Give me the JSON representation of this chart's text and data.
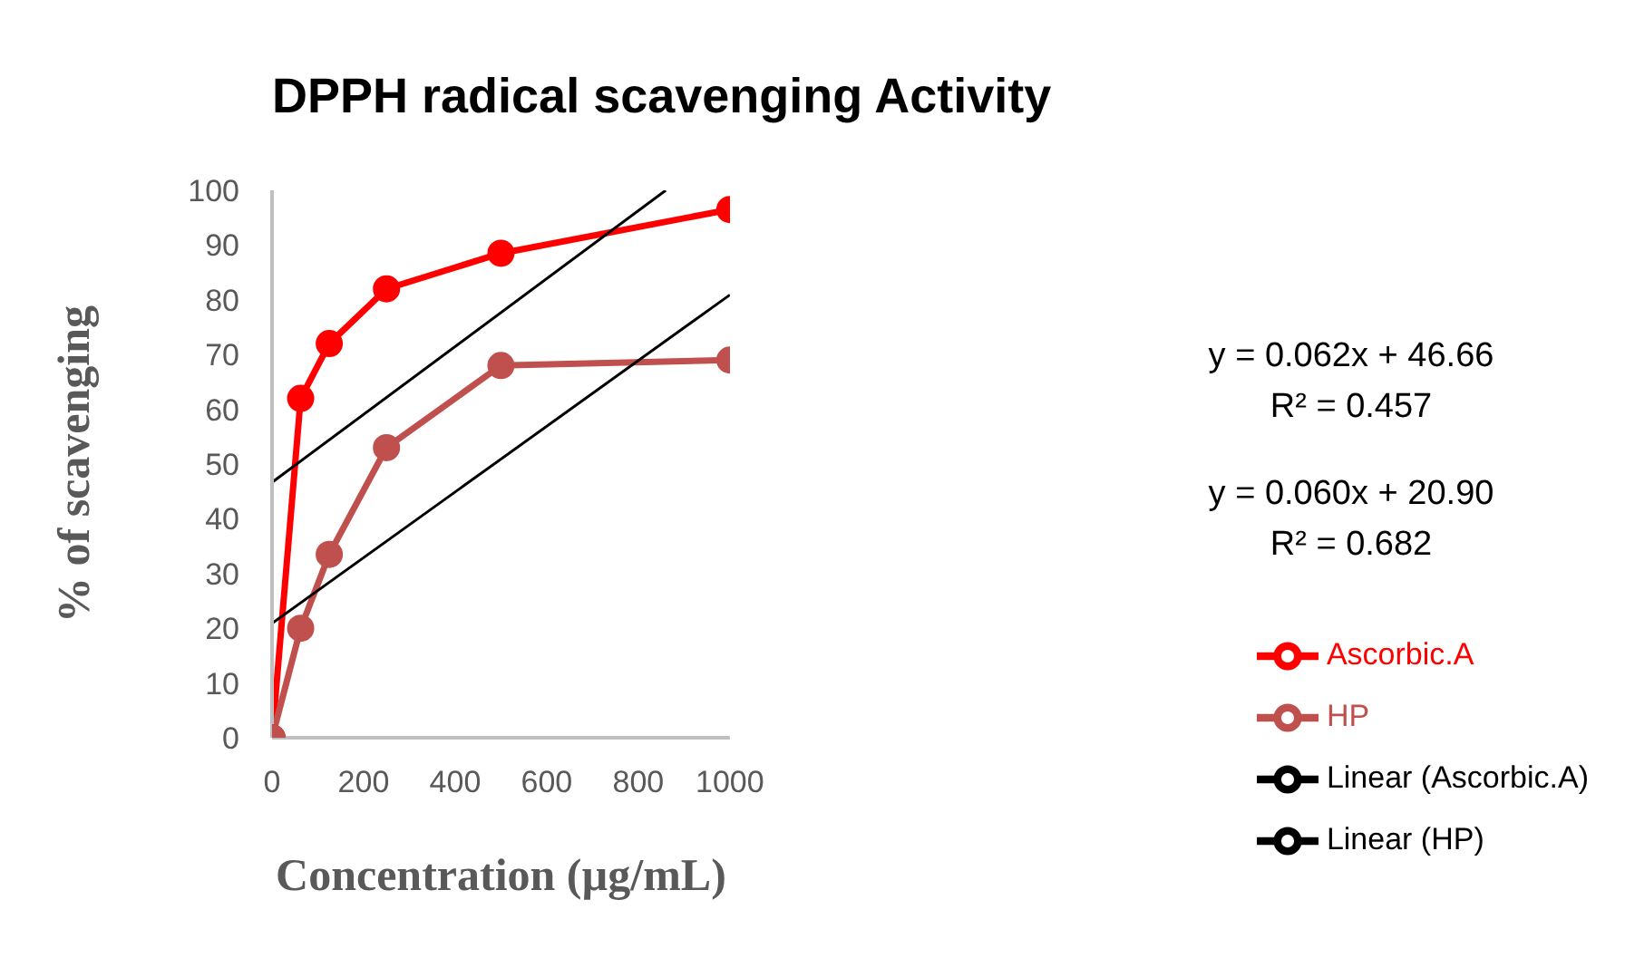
{
  "chart_data": {
    "type": "line",
    "title": "DPPH radical scavenging Activity",
    "xlabel": "Concentration (µg/mL)",
    "ylabel": "% of scavenging",
    "x": [
      0,
      62.5,
      125,
      250,
      500,
      1000
    ],
    "series": [
      {
        "name": "Ascorbic.A",
        "color": "#ff0000",
        "values": [
          0,
          62,
          72,
          82,
          88.5,
          96.5
        ]
      },
      {
        "name": "HP",
        "color": "#c0504d",
        "values": [
          0,
          20,
          33.5,
          53,
          68,
          69
        ]
      },
      {
        "name": "Linear (Ascorbic.A)",
        "color": "#000000",
        "marker": "none",
        "x": [
          0,
          860
        ],
        "values": [
          46.66,
          100
        ]
      },
      {
        "name": "Linear (HP)",
        "color": "#000000",
        "marker": "none",
        "x": [
          0,
          1000
        ],
        "values": [
          20.9,
          80.9
        ]
      }
    ],
    "annotations": [
      "y = 0.062x + 46.66",
      "R² = 0.457",
      "y = 0.060x + 20.90",
      "R² = 0.682"
    ],
    "xlim": [
      0,
      1000
    ],
    "xticks": [
      0,
      200,
      400,
      600,
      800,
      1000
    ],
    "ylim": [
      0,
      100
    ],
    "yticks": [
      0,
      10,
      20,
      30,
      40,
      50,
      60,
      70,
      80,
      90,
      100
    ],
    "grid": false,
    "legend": "right",
    "marker": "circle",
    "line_style": "solid"
  }
}
